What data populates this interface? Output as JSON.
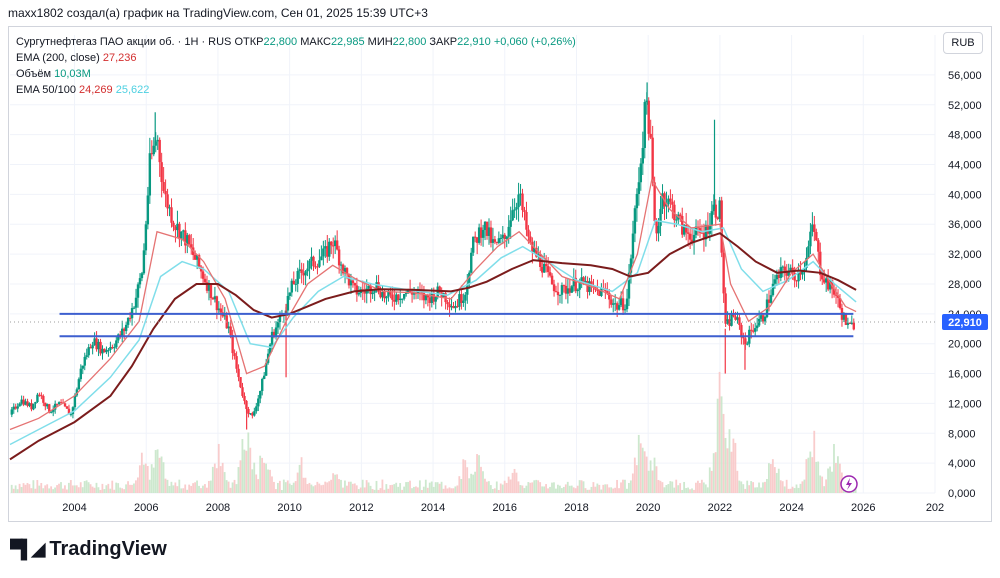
{
  "header": {
    "caption": "maxx1802 создал(а) график на TradingView.com, Сен 01, 2025 15:39 UTC+3"
  },
  "legend": {
    "symbol": "Сургутнефтегаз ПАО акции об. · 1Н · RUS",
    "open_label": "ОТКР",
    "open": "22,800",
    "high_label": "МАКС",
    "high": "22,985",
    "low_label": "МИН",
    "low": "22,800",
    "close_label": "ЗАКР",
    "close": "22,910",
    "change": "+0,060 (+0,26%)",
    "ema200_label": "EMA (200, close)",
    "ema200_value": "27,236",
    "volume_label": "Объём",
    "volume_value": "10,03M",
    "ema50_100_label": "EMA 50/100",
    "ema50_value": "24,269",
    "ema100_value": "25,622"
  },
  "currency_button": "RUB",
  "brand": {
    "name": "TradingView",
    "logo_icon": "tradingview-logo-icon"
  },
  "colors": {
    "up": "#089981",
    "down": "#f23645",
    "ema200": "#7b1c1c",
    "ema50": "#e57373",
    "ema100": "#80deea",
    "level_line": "#3d5fcf",
    "price_tag": "#2962ff"
  },
  "chart_data": {
    "type": "candlestick",
    "x_ticks": [
      "2004",
      "2006",
      "2008",
      "2010",
      "2012",
      "2014",
      "2016",
      "2018",
      "2020",
      "2022",
      "2024",
      "2026",
      "202"
    ],
    "y_ticks": [
      "56,000",
      "52,000",
      "48,000",
      "44,000",
      "40,000",
      "36,000",
      "32,000",
      "28,000",
      "24,000",
      "20,000",
      "16,000",
      "12,000",
      "8,000",
      "4,000",
      "0,000"
    ],
    "x_range": [
      2002.2,
      2028.0
    ],
    "y_range": [
      0,
      58
    ],
    "last_price": "22,910",
    "last_price_value": 22.91,
    "horizontal_levels": [
      {
        "value": 24.0,
        "x_start": 2004.0,
        "x_end": 2025.5
      },
      {
        "value": 21.0,
        "x_start": 2004.0,
        "x_end": 2025.5
      }
    ],
    "price_path": [
      [
        2002.2,
        10.5
      ],
      [
        2002.5,
        12.5
      ],
      [
        2002.8,
        11.5
      ],
      [
        2003.0,
        13.5
      ],
      [
        2003.3,
        11.0
      ],
      [
        2003.6,
        12.0
      ],
      [
        2003.9,
        10.5
      ],
      [
        2004.2,
        17.0
      ],
      [
        2004.5,
        20.5
      ],
      [
        2004.8,
        19.0
      ],
      [
        2005.1,
        20.0
      ],
      [
        2005.4,
        22.0
      ],
      [
        2005.7,
        26.0
      ],
      [
        2005.9,
        30.0
      ],
      [
        2006.1,
        44.0
      ],
      [
        2006.3,
        48.0
      ],
      [
        2006.5,
        40.0
      ],
      [
        2006.8,
        36.0
      ],
      [
        2007.1,
        34.0
      ],
      [
        2007.4,
        31.0
      ],
      [
        2007.7,
        28.0
      ],
      [
        2008.0,
        25.0
      ],
      [
        2008.3,
        22.0
      ],
      [
        2008.5,
        17.0
      ],
      [
        2008.75,
        12.0
      ],
      [
        2008.95,
        10.0
      ],
      [
        2009.2,
        14.0
      ],
      [
        2009.5,
        21.0
      ],
      [
        2009.8,
        24.0
      ],
      [
        2010.1,
        28.0
      ],
      [
        2010.4,
        30.0
      ],
      [
        2010.7,
        31.0
      ],
      [
        2011.0,
        32.0
      ],
      [
        2011.2,
        34.0
      ],
      [
        2011.5,
        30.0
      ],
      [
        2011.8,
        27.0
      ],
      [
        2012.1,
        27.0
      ],
      [
        2012.4,
        28.0
      ],
      [
        2012.7,
        26.0
      ],
      [
        2013.0,
        26.5
      ],
      [
        2013.4,
        27.0
      ],
      [
        2013.8,
        26.0
      ],
      [
        2014.2,
        27.0
      ],
      [
        2014.6,
        25.0
      ],
      [
        2014.9,
        27.0
      ],
      [
        2015.1,
        33.0
      ],
      [
        2015.4,
        36.0
      ],
      [
        2015.7,
        33.0
      ],
      [
        2016.0,
        34.0
      ],
      [
        2016.2,
        38.0
      ],
      [
        2016.4,
        40.0
      ],
      [
        2016.7,
        33.0
      ],
      [
        2017.0,
        31.0
      ],
      [
        2017.3,
        28.0
      ],
      [
        2017.6,
        27.0
      ],
      [
        2017.9,
        28.0
      ],
      [
        2018.2,
        28.0
      ],
      [
        2018.5,
        27.0
      ],
      [
        2018.8,
        27.0
      ],
      [
        2019.1,
        25.0
      ],
      [
        2019.4,
        25.5
      ],
      [
        2019.6,
        36.0
      ],
      [
        2019.8,
        45.0
      ],
      [
        2019.95,
        53.0
      ],
      [
        2020.05,
        48.0
      ],
      [
        2020.2,
        34.0
      ],
      [
        2020.4,
        40.0
      ],
      [
        2020.7,
        38.0
      ],
      [
        2021.0,
        35.0
      ],
      [
        2021.3,
        34.5
      ],
      [
        2021.6,
        35.0
      ],
      [
        2021.8,
        38.0
      ],
      [
        2022.0,
        38.0
      ],
      [
        2022.15,
        22.0
      ],
      [
        2022.4,
        24.0
      ],
      [
        2022.7,
        20.0
      ],
      [
        2022.9,
        22.0
      ],
      [
        2023.2,
        23.5
      ],
      [
        2023.5,
        28.0
      ],
      [
        2023.8,
        30.0
      ],
      [
        2024.1,
        29.0
      ],
      [
        2024.4,
        31.0
      ],
      [
        2024.6,
        36.0
      ],
      [
        2024.8,
        30.0
      ],
      [
        2025.0,
        28.0
      ],
      [
        2025.2,
        27.0
      ],
      [
        2025.4,
        24.0
      ],
      [
        2025.6,
        22.0
      ],
      [
        2025.8,
        22.91
      ]
    ],
    "ema200_path": [
      [
        2002.2,
        4.5
      ],
      [
        2003.0,
        7.0
      ],
      [
        2004.0,
        9.5
      ],
      [
        2005.0,
        13.0
      ],
      [
        2005.6,
        17.0
      ],
      [
        2006.2,
        22.0
      ],
      [
        2006.8,
        26.0
      ],
      [
        2007.4,
        28.0
      ],
      [
        2008.0,
        28.0
      ],
      [
        2008.5,
        26.5
      ],
      [
        2009.0,
        24.5
      ],
      [
        2009.5,
        23.5
      ],
      [
        2010.0,
        24.0
      ],
      [
        2010.5,
        25.0
      ],
      [
        2011.0,
        26.0
      ],
      [
        2011.8,
        27.0
      ],
      [
        2012.5,
        27.3
      ],
      [
        2013.5,
        27.2
      ],
      [
        2014.5,
        27.0
      ],
      [
        2015.0,
        27.5
      ],
      [
        2015.5,
        28.3
      ],
      [
        2016.2,
        30.0
      ],
      [
        2016.8,
        31.2
      ],
      [
        2017.6,
        30.8
      ],
      [
        2018.4,
        30.5
      ],
      [
        2019.0,
        30.0
      ],
      [
        2019.5,
        29.0
      ],
      [
        2020.0,
        29.5
      ],
      [
        2020.6,
        32.0
      ],
      [
        2021.2,
        33.5
      ],
      [
        2022.0,
        34.8
      ],
      [
        2022.5,
        33.0
      ],
      [
        2023.0,
        31.0
      ],
      [
        2023.6,
        29.5
      ],
      [
        2024.2,
        29.8
      ],
      [
        2024.8,
        29.5
      ],
      [
        2025.3,
        28.5
      ],
      [
        2025.8,
        27.2
      ]
    ],
    "ema50_path": [
      [
        2002.2,
        8.5
      ],
      [
        2003.0,
        10.0
      ],
      [
        2004.0,
        13.0
      ],
      [
        2005.0,
        18.0
      ],
      [
        2005.8,
        23.0
      ],
      [
        2006.3,
        35.0
      ],
      [
        2007.0,
        34.0
      ],
      [
        2007.6,
        31.0
      ],
      [
        2008.2,
        26.0
      ],
      [
        2008.8,
        16.0
      ],
      [
        2009.3,
        17.0
      ],
      [
        2009.9,
        23.0
      ],
      [
        2010.5,
        28.0
      ],
      [
        2011.2,
        30.5
      ],
      [
        2011.9,
        28.5
      ],
      [
        2012.6,
        27.0
      ],
      [
        2013.5,
        26.8
      ],
      [
        2014.5,
        26.0
      ],
      [
        2015.2,
        30.0
      ],
      [
        2015.8,
        33.0
      ],
      [
        2016.4,
        35.0
      ],
      [
        2017.0,
        32.0
      ],
      [
        2017.6,
        29.0
      ],
      [
        2018.5,
        27.5
      ],
      [
        2019.2,
        26.0
      ],
      [
        2019.7,
        32.0
      ],
      [
        2020.1,
        42.0
      ],
      [
        2020.6,
        38.0
      ],
      [
        2021.2,
        35.5
      ],
      [
        2022.0,
        36.0
      ],
      [
        2022.3,
        28.0
      ],
      [
        2022.8,
        23.0
      ],
      [
        2023.4,
        25.0
      ],
      [
        2024.0,
        29.5
      ],
      [
        2024.6,
        32.0
      ],
      [
        2025.1,
        28.0
      ],
      [
        2025.5,
        25.0
      ],
      [
        2025.8,
        24.3
      ]
    ],
    "ema100_path": [
      [
        2002.2,
        6.5
      ],
      [
        2003.0,
        8.5
      ],
      [
        2004.0,
        11.0
      ],
      [
        2005.0,
        15.5
      ],
      [
        2005.8,
        20.5
      ],
      [
        2006.4,
        29.0
      ],
      [
        2007.0,
        31.0
      ],
      [
        2007.6,
        30.0
      ],
      [
        2008.3,
        27.0
      ],
      [
        2008.9,
        20.0
      ],
      [
        2009.5,
        19.5
      ],
      [
        2010.1,
        23.5
      ],
      [
        2010.8,
        27.0
      ],
      [
        2011.5,
        29.0
      ],
      [
        2012.3,
        28.0
      ],
      [
        2013.3,
        27.2
      ],
      [
        2014.4,
        26.5
      ],
      [
        2015.2,
        28.5
      ],
      [
        2015.9,
        31.5
      ],
      [
        2016.5,
        33.0
      ],
      [
        2017.2,
        31.0
      ],
      [
        2018.0,
        28.5
      ],
      [
        2019.0,
        27.0
      ],
      [
        2019.7,
        29.5
      ],
      [
        2020.2,
        36.5
      ],
      [
        2020.8,
        36.0
      ],
      [
        2021.5,
        35.0
      ],
      [
        2022.1,
        35.5
      ],
      [
        2022.6,
        30.0
      ],
      [
        2023.2,
        27.0
      ],
      [
        2023.9,
        28.5
      ],
      [
        2024.6,
        31.0
      ],
      [
        2025.2,
        28.0
      ],
      [
        2025.8,
        25.6
      ]
    ],
    "volume_spikes": [
      [
        2005.9,
        6
      ],
      [
        2006.3,
        8
      ],
      [
        2008.0,
        7
      ],
      [
        2008.8,
        10
      ],
      [
        2009.3,
        7
      ],
      [
        2010.3,
        5
      ],
      [
        2011.2,
        4
      ],
      [
        2014.9,
        5
      ],
      [
        2015.3,
        6
      ],
      [
        2016.2,
        4
      ],
      [
        2019.8,
        9
      ],
      [
        2020.1,
        6
      ],
      [
        2022.0,
        16
      ],
      [
        2022.3,
        11
      ],
      [
        2023.5,
        6
      ],
      [
        2024.6,
        9
      ],
      [
        2025.2,
        7
      ]
    ]
  }
}
